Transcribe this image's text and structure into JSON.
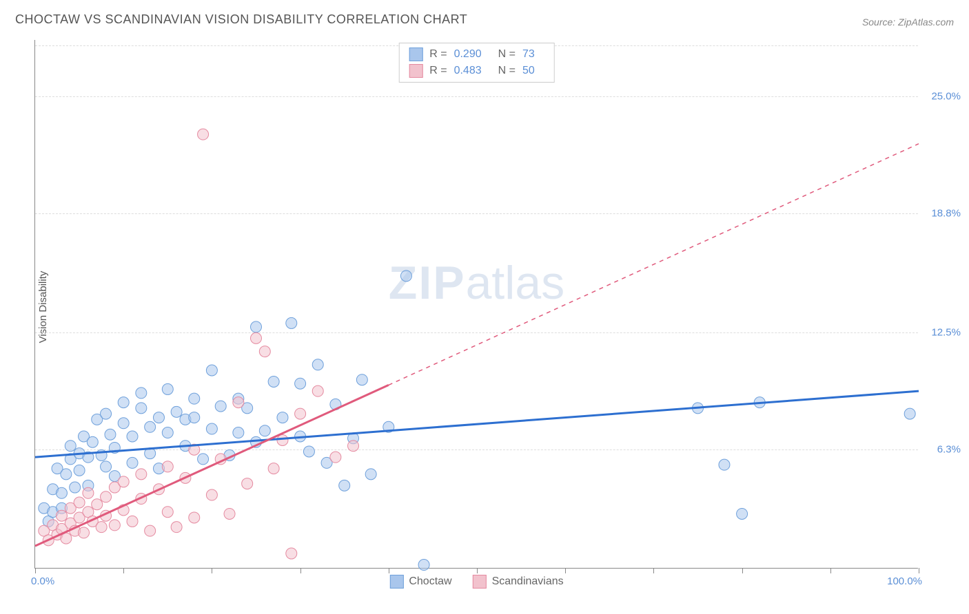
{
  "title": "CHOCTAW VS SCANDINAVIAN VISION DISABILITY CORRELATION CHART",
  "source": "Source: ZipAtlas.com",
  "ylabel": "Vision Disability",
  "watermark_left": "ZIP",
  "watermark_right": "atlas",
  "chart": {
    "type": "scatter",
    "xlim": [
      0,
      100
    ],
    "ylim": [
      0,
      28
    ],
    "y_ticks": [
      6.3,
      12.5,
      18.8,
      25.0
    ],
    "y_tick_labels": [
      "6.3%",
      "12.5%",
      "18.8%",
      "25.0%"
    ],
    "x_ticks": [
      0,
      10,
      20,
      30,
      40,
      50,
      60,
      70,
      80,
      90,
      100
    ],
    "x_start_label": "0.0%",
    "x_end_label": "100.0%",
    "background_color": "#ffffff",
    "grid_color": "#dddddd",
    "axis_color": "#888888",
    "marker_radius": 8,
    "marker_opacity": 0.55,
    "series": [
      {
        "name": "Choctaw",
        "color_fill": "#a9c6ec",
        "color_stroke": "#6ea0db",
        "line_color": "#2d6fd0",
        "line_width": 3,
        "r_label": "R =",
        "r_value": "0.290",
        "n_label": "N =",
        "n_value": "73",
        "trend": {
          "x1": 0,
          "y1": 5.9,
          "x2": 100,
          "y2": 9.4,
          "dash_after_x": 100
        },
        "points": [
          [
            1,
            3.2
          ],
          [
            1.5,
            2.5
          ],
          [
            2,
            3.0
          ],
          [
            2,
            4.2
          ],
          [
            2.5,
            5.3
          ],
          [
            3,
            4.0
          ],
          [
            3,
            3.2
          ],
          [
            3.5,
            5.0
          ],
          [
            4,
            5.8
          ],
          [
            4,
            6.5
          ],
          [
            4.5,
            4.3
          ],
          [
            5,
            6.1
          ],
          [
            5,
            5.2
          ],
          [
            5.5,
            7.0
          ],
          [
            6,
            4.4
          ],
          [
            6,
            5.9
          ],
          [
            6.5,
            6.7
          ],
          [
            7,
            7.9
          ],
          [
            7.5,
            6.0
          ],
          [
            8,
            5.4
          ],
          [
            8,
            8.2
          ],
          [
            8.5,
            7.1
          ],
          [
            9,
            6.4
          ],
          [
            9,
            4.9
          ],
          [
            10,
            7.7
          ],
          [
            10,
            8.8
          ],
          [
            11,
            5.6
          ],
          [
            11,
            7.0
          ],
          [
            12,
            8.5
          ],
          [
            12,
            9.3
          ],
          [
            13,
            6.1
          ],
          [
            13,
            7.5
          ],
          [
            14,
            8.0
          ],
          [
            14,
            5.3
          ],
          [
            15,
            9.5
          ],
          [
            15,
            7.2
          ],
          [
            16,
            8.3
          ],
          [
            17,
            6.5
          ],
          [
            17,
            7.9
          ],
          [
            18,
            9.0
          ],
          [
            18,
            8.0
          ],
          [
            19,
            5.8
          ],
          [
            20,
            7.4
          ],
          [
            20,
            10.5
          ],
          [
            21,
            8.6
          ],
          [
            22,
            6.0
          ],
          [
            23,
            7.2
          ],
          [
            23,
            9.0
          ],
          [
            24,
            8.5
          ],
          [
            25,
            6.7
          ],
          [
            25,
            12.8
          ],
          [
            26,
            7.3
          ],
          [
            27,
            9.9
          ],
          [
            28,
            8.0
          ],
          [
            29,
            13.0
          ],
          [
            30,
            7.0
          ],
          [
            30,
            9.8
          ],
          [
            31,
            6.2
          ],
          [
            32,
            10.8
          ],
          [
            33,
            5.6
          ],
          [
            34,
            8.7
          ],
          [
            35,
            4.4
          ],
          [
            36,
            6.9
          ],
          [
            37,
            10.0
          ],
          [
            38,
            5.0
          ],
          [
            40,
            7.5
          ],
          [
            42,
            15.5
          ],
          [
            44,
            0.2
          ],
          [
            75,
            8.5
          ],
          [
            78,
            5.5
          ],
          [
            80,
            2.9
          ],
          [
            82,
            8.8
          ],
          [
            99,
            8.2
          ]
        ]
      },
      {
        "name": "Scandinavians",
        "color_fill": "#f2c2cd",
        "color_stroke": "#e58aa0",
        "line_color": "#e05a7c",
        "line_width": 3,
        "r_label": "R =",
        "r_value": "0.483",
        "n_label": "N =",
        "n_value": "50",
        "trend": {
          "x1": 0,
          "y1": 1.2,
          "x2": 100,
          "y2": 22.5,
          "dash_after_x": 40
        },
        "points": [
          [
            1,
            2.0
          ],
          [
            1.5,
            1.5
          ],
          [
            2,
            2.3
          ],
          [
            2.5,
            1.8
          ],
          [
            3,
            2.1
          ],
          [
            3,
            2.8
          ],
          [
            3.5,
            1.6
          ],
          [
            4,
            3.2
          ],
          [
            4,
            2.4
          ],
          [
            4.5,
            2.0
          ],
          [
            5,
            2.7
          ],
          [
            5,
            3.5
          ],
          [
            5.5,
            1.9
          ],
          [
            6,
            3.0
          ],
          [
            6,
            4.0
          ],
          [
            6.5,
            2.5
          ],
          [
            7,
            3.4
          ],
          [
            7.5,
            2.2
          ],
          [
            8,
            3.8
          ],
          [
            8,
            2.8
          ],
          [
            9,
            4.3
          ],
          [
            9,
            2.3
          ],
          [
            10,
            3.1
          ],
          [
            10,
            4.6
          ],
          [
            11,
            2.5
          ],
          [
            12,
            3.7
          ],
          [
            12,
            5.0
          ],
          [
            13,
            2.0
          ],
          [
            14,
            4.2
          ],
          [
            15,
            3.0
          ],
          [
            15,
            5.4
          ],
          [
            16,
            2.2
          ],
          [
            17,
            4.8
          ],
          [
            18,
            2.7
          ],
          [
            18,
            6.3
          ],
          [
            19,
            23.0
          ],
          [
            20,
            3.9
          ],
          [
            21,
            5.8
          ],
          [
            22,
            2.9
          ],
          [
            23,
            8.8
          ],
          [
            24,
            4.5
          ],
          [
            25,
            12.2
          ],
          [
            26,
            11.5
          ],
          [
            27,
            5.3
          ],
          [
            28,
            6.8
          ],
          [
            29,
            0.8
          ],
          [
            30,
            8.2
          ],
          [
            32,
            9.4
          ],
          [
            34,
            5.9
          ],
          [
            36,
            6.5
          ]
        ]
      }
    ]
  },
  "legend_bottom": [
    {
      "label": "Choctaw",
      "fill": "#a9c6ec",
      "stroke": "#6ea0db"
    },
    {
      "label": "Scandinavians",
      "fill": "#f2c2cd",
      "stroke": "#e58aa0"
    }
  ]
}
